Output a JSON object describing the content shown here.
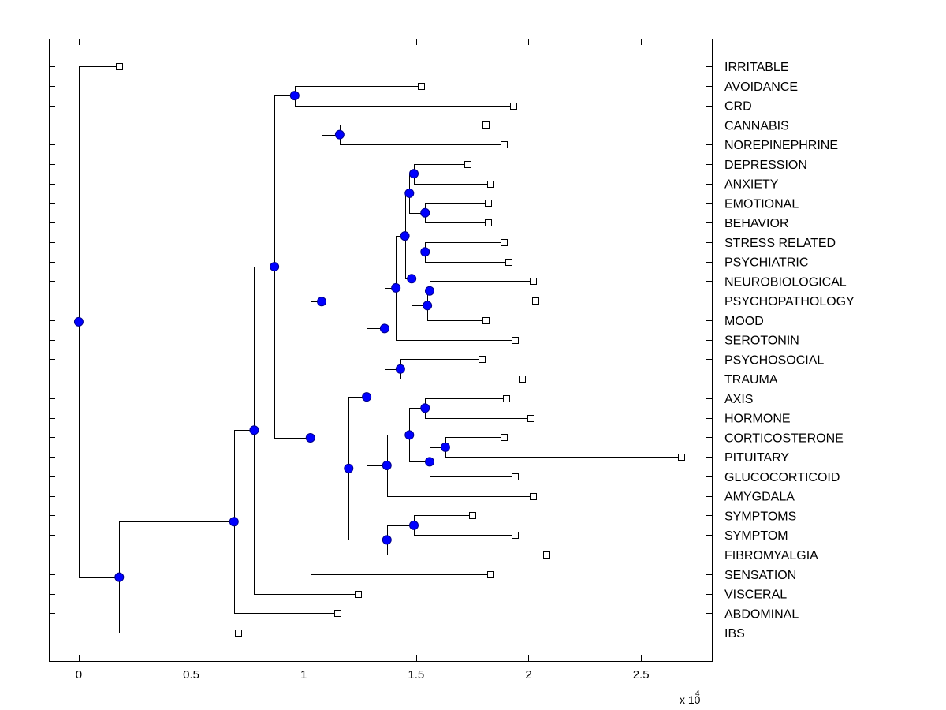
{
  "chart_data": {
    "type": "dendrogram",
    "title": "",
    "xlabel": "",
    "ylabel": "",
    "x_multiplier_label": "x 10",
    "x_multiplier_exponent": "4",
    "xlim": [
      -0.133,
      2.815
    ],
    "xticks": [
      0,
      0.5,
      1,
      1.5,
      2,
      2.5
    ],
    "xtick_labels": [
      "0",
      "0.5",
      "1",
      "1.5",
      "2",
      "2.5"
    ],
    "grid": false,
    "node_color": "#0000ff",
    "leaf_marker": "square",
    "node_marker": "circle",
    "leaves": [
      {
        "id": "IRRITABLE",
        "label": "IRRITABLE",
        "x": 0.18
      },
      {
        "id": "AVOIDANCE",
        "label": "AVOIDANCE",
        "x": 1.52
      },
      {
        "id": "CRD",
        "label": "CRD",
        "x": 1.93
      },
      {
        "id": "CANNABIS",
        "label": "CANNABIS",
        "x": 1.81
      },
      {
        "id": "NOREPINEPHRINE",
        "label": "NOREPINEPHRINE",
        "x": 1.89
      },
      {
        "id": "DEPRESSION",
        "label": "DEPRESSION",
        "x": 1.73
      },
      {
        "id": "ANXIETY",
        "label": "ANXIETY",
        "x": 1.83
      },
      {
        "id": "EMOTIONAL",
        "label": "EMOTIONAL",
        "x": 1.82
      },
      {
        "id": "BEHAVIOR",
        "label": "BEHAVIOR",
        "x": 1.82
      },
      {
        "id": "STRESS_RELATED",
        "label": "STRESS RELATED",
        "x": 1.89
      },
      {
        "id": "PSYCHIATRIC",
        "label": "PSYCHIATRIC",
        "x": 1.91
      },
      {
        "id": "NEUROBIOLOGICAL",
        "label": "NEUROBIOLOGICAL",
        "x": 2.02
      },
      {
        "id": "PSYCHOPATHOLOGY",
        "label": "PSYCHOPATHOLOGY",
        "x": 2.03
      },
      {
        "id": "MOOD",
        "label": "MOOD",
        "x": 1.81
      },
      {
        "id": "SEROTONIN",
        "label": "SEROTONIN",
        "x": 1.94
      },
      {
        "id": "PSYCHOSOCIAL",
        "label": "PSYCHOSOCIAL",
        "x": 1.79
      },
      {
        "id": "TRAUMA",
        "label": "TRAUMA",
        "x": 1.97
      },
      {
        "id": "AXIS",
        "label": "AXIS",
        "x": 1.9
      },
      {
        "id": "HORMONE",
        "label": "HORMONE",
        "x": 2.01
      },
      {
        "id": "CORTICOSTERONE",
        "label": "CORTICOSTERONE",
        "x": 1.89
      },
      {
        "id": "PITUITARY",
        "label": "PITUITARY",
        "x": 2.68
      },
      {
        "id": "GLUCOCORTICOID",
        "label": "GLUCOCORTICOID",
        "x": 1.94
      },
      {
        "id": "AMYGDALA",
        "label": "AMYGDALA",
        "x": 2.02
      },
      {
        "id": "SYMPTOMS",
        "label": "SYMPTOMS",
        "x": 1.75
      },
      {
        "id": "SYMPTOM",
        "label": "SYMPTOM",
        "x": 1.94
      },
      {
        "id": "FIBROMYALGIA",
        "label": "FIBROMYALGIA",
        "x": 2.08
      },
      {
        "id": "SENSATION",
        "label": "SENSATION",
        "x": 1.83
      },
      {
        "id": "VISCERAL",
        "label": "VISCERAL",
        "x": 1.24
      },
      {
        "id": "ABDOMINAL",
        "label": "ABDOMINAL",
        "x": 1.15
      },
      {
        "id": "IBS",
        "label": "IBS",
        "x": 0.71
      }
    ],
    "nodes": [
      {
        "id": "n_avoid_crd",
        "x": 0.96,
        "children": [
          "AVOIDANCE",
          "CRD"
        ]
      },
      {
        "id": "n_cann_nor",
        "x": 1.16,
        "children": [
          "CANNABIS",
          "NOREPINEPHRINE"
        ]
      },
      {
        "id": "n_dep_anx",
        "x": 1.49,
        "children": [
          "DEPRESSION",
          "ANXIETY"
        ]
      },
      {
        "id": "n_emo_beh",
        "x": 1.54,
        "children": [
          "EMOTIONAL",
          "BEHAVIOR"
        ]
      },
      {
        "id": "n_da_eb",
        "x": 1.47,
        "children": [
          "n_dep_anx",
          "n_emo_beh"
        ]
      },
      {
        "id": "n_stress_psy",
        "x": 1.54,
        "children": [
          "STRESS_RELATED",
          "PSYCHIATRIC"
        ]
      },
      {
        "id": "n_neuro_psychopath",
        "x": 1.56,
        "children": [
          "NEUROBIOLOGICAL",
          "PSYCHOPATHOLOGY"
        ]
      },
      {
        "id": "n_np_mood",
        "x": 1.55,
        "children": [
          "n_neuro_psychopath",
          "MOOD"
        ]
      },
      {
        "id": "n_sp_npm",
        "x": 1.48,
        "children": [
          "n_stress_psy",
          "n_np_mood"
        ]
      },
      {
        "id": "n_upper",
        "x": 1.45,
        "children": [
          "n_da_eb",
          "n_sp_npm"
        ]
      },
      {
        "id": "n_sero",
        "x": 1.41,
        "children": [
          "n_upper",
          "SEROTONIN"
        ]
      },
      {
        "id": "n_psysoc_trauma",
        "x": 1.43,
        "children": [
          "PSYCHOSOCIAL",
          "TRAUMA"
        ]
      },
      {
        "id": "n_a1",
        "x": 1.36,
        "children": [
          "n_sero",
          "n_psysoc_trauma"
        ]
      },
      {
        "id": "n_axis_horm",
        "x": 1.54,
        "children": [
          "AXIS",
          "HORMONE"
        ]
      },
      {
        "id": "n_cort_pit",
        "x": 1.63,
        "children": [
          "CORTICOSTERONE",
          "PITUITARY"
        ]
      },
      {
        "id": "n_cp_gluc",
        "x": 1.56,
        "children": [
          "n_cort_pit",
          "GLUCOCORTICOID"
        ]
      },
      {
        "id": "n_ah_cpg",
        "x": 1.47,
        "children": [
          "n_axis_horm",
          "n_cp_gluc"
        ]
      },
      {
        "id": "n_amyg",
        "x": 1.37,
        "children": [
          "n_ah_cpg",
          "AMYGDALA"
        ]
      },
      {
        "id": "n_b1",
        "x": 1.28,
        "children": [
          "n_a1",
          "n_amyg"
        ]
      },
      {
        "id": "n_symptoms",
        "x": 1.49,
        "children": [
          "SYMPTOMS",
          "SYMPTOM"
        ]
      },
      {
        "id": "n_fibro",
        "x": 1.37,
        "children": [
          "n_symptoms",
          "FIBROMYALGIA"
        ]
      },
      {
        "id": "n_c1",
        "x": 1.2,
        "children": [
          "n_b1",
          "n_fibro"
        ]
      },
      {
        "id": "n_d1",
        "x": 1.08,
        "children": [
          "n_cann_nor",
          "n_c1"
        ]
      },
      {
        "id": "n_sens",
        "x": 1.03,
        "children": [
          "n_d1",
          "SENSATION"
        ]
      },
      {
        "id": "n_e1",
        "x": 0.87,
        "children": [
          "n_avoid_crd",
          "n_sens"
        ]
      },
      {
        "id": "n_visc",
        "x": 0.78,
        "children": [
          "n_e1",
          "VISCERAL"
        ]
      },
      {
        "id": "n_abd",
        "x": 0.69,
        "children": [
          "n_visc",
          "ABDOMINAL"
        ]
      },
      {
        "id": "n_ibs",
        "x": 0.18,
        "children": [
          "n_abd",
          "IBS"
        ]
      },
      {
        "id": "root",
        "x": 0.0,
        "children": [
          "IRRITABLE",
          "n_ibs"
        ]
      }
    ]
  }
}
